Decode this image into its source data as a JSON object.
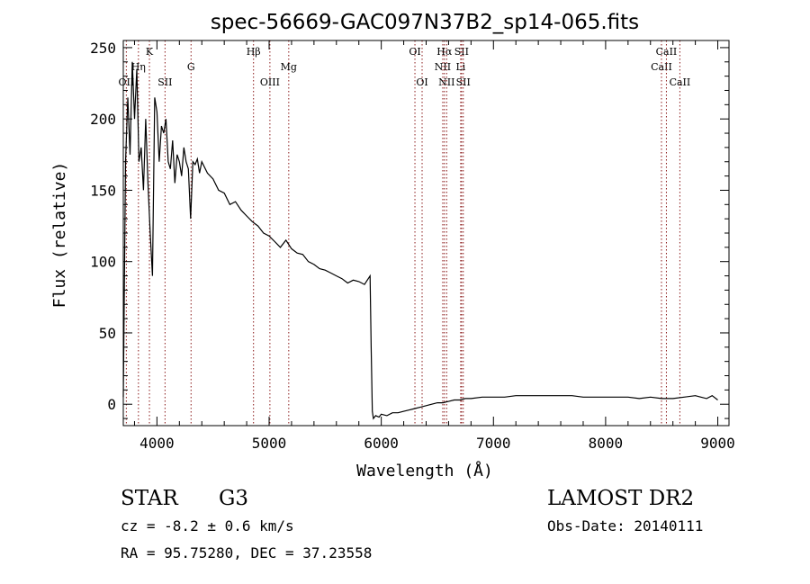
{
  "chart_data": {
    "type": "line",
    "title": "spec-56669-GAC097N37B2_sp14-065.fits",
    "xlabel": "Wavelength (Å)",
    "ylabel": "Flux (relative)",
    "xlim": [
      3700,
      9100
    ],
    "ylim": [
      -15,
      255
    ],
    "xticks": [
      4000,
      5000,
      6000,
      7000,
      8000,
      9000
    ],
    "yticks": [
      0,
      50,
      100,
      150,
      200,
      250
    ],
    "grid": false,
    "line_color": "#000000",
    "marker_color": "#8b1a1a",
    "series": [
      {
        "x": [
          3700,
          3720,
          3740,
          3760,
          3780,
          3800,
          3820,
          3840,
          3860,
          3880,
          3900,
          3920,
          3940,
          3960,
          3980,
          4000,
          4020,
          4040,
          4060,
          4080,
          4100,
          4120,
          4140,
          4160,
          4180,
          4200,
          4220,
          4240,
          4260,
          4280,
          4300,
          4320,
          4340,
          4360,
          4380,
          4400,
          4450,
          4500,
          4550,
          4600,
          4650,
          4700,
          4750,
          4800,
          4850,
          4900,
          4950,
          5000,
          5050,
          5100,
          5150,
          5200,
          5250,
          5300,
          5350,
          5400,
          5450,
          5500,
          5550,
          5600,
          5650,
          5700,
          5750,
          5800,
          5850,
          5900,
          5910,
          5920,
          5930,
          5950,
          5980,
          6000,
          6050,
          6100,
          6150,
          6200,
          6250,
          6300,
          6350,
          6400,
          6450,
          6500,
          6550,
          6600,
          6650,
          6700,
          6750,
          6800,
          6900,
          7000,
          7100,
          7200,
          7300,
          7400,
          7500,
          7600,
          7700,
          7800,
          7900,
          8000,
          8100,
          8200,
          8300,
          8400,
          8500,
          8600,
          8700,
          8800,
          8850,
          8900,
          8950,
          9000
        ],
        "y": [
          5,
          170,
          215,
          175,
          240,
          200,
          235,
          170,
          180,
          150,
          200,
          155,
          120,
          90,
          215,
          205,
          170,
          195,
          190,
          200,
          170,
          165,
          185,
          155,
          175,
          170,
          160,
          180,
          170,
          165,
          130,
          170,
          168,
          172,
          162,
          170,
          162,
          158,
          150,
          148,
          140,
          142,
          136,
          132,
          128,
          125,
          120,
          118,
          114,
          110,
          115,
          109,
          106,
          105,
          100,
          98,
          95,
          94,
          92,
          90,
          88,
          85,
          87,
          86,
          84,
          90,
          40,
          -5,
          -10,
          -8,
          -9,
          -7,
          -8,
          -6,
          -6,
          -5,
          -4,
          -3,
          -2,
          -1,
          0,
          1,
          1,
          2,
          3,
          3,
          4,
          4,
          5,
          5,
          5,
          6,
          6,
          6,
          6,
          6,
          6,
          5,
          5,
          5,
          5,
          5,
          4,
          5,
          4,
          4,
          5,
          6,
          5,
          4,
          6,
          3
        ]
      }
    ],
    "line_markers": [
      {
        "label": "OII",
        "x": 3727,
        "row": 3
      },
      {
        "label": "Hη",
        "x": 3835,
        "row": 2
      },
      {
        "label": "K",
        "x": 3933,
        "row": 1
      },
      {
        "label": "SII",
        "x": 4072,
        "row": 3
      },
      {
        "label": "G",
        "x": 4304,
        "row": 2
      },
      {
        "label": "Hβ",
        "x": 4861,
        "row": 1
      },
      {
        "label": "OIII",
        "x": 5007,
        "row": 3
      },
      {
        "label": "Mg",
        "x": 5175,
        "row": 2
      },
      {
        "label": "OI",
        "x": 6300,
        "row": 1
      },
      {
        "label": "OI",
        "x": 6364,
        "row": 3
      },
      {
        "label": "NII",
        "x": 6548,
        "row": 2
      },
      {
        "label": "Hα",
        "x": 6563,
        "row": 1
      },
      {
        "label": "NII",
        "x": 6583,
        "row": 3
      },
      {
        "label": "SII",
        "x": 6716,
        "row": 1
      },
      {
        "label": "Li",
        "x": 6708,
        "row": 2
      },
      {
        "label": "SII",
        "x": 6731,
        "row": 3
      },
      {
        "label": "CaII",
        "x": 8498,
        "row": 2
      },
      {
        "label": "CaII",
        "x": 8542,
        "row": 1
      },
      {
        "label": "CaII",
        "x": 8662,
        "row": 3
      }
    ]
  },
  "info": {
    "object_class": "STAR",
    "subclass": "G3",
    "survey": "LAMOST DR2",
    "cz": "cz = -8.2 ± 0.6 km/s",
    "obs_date": "Obs-Date: 20140111",
    "radec": "RA =  95.75280, DEC =  37.23558"
  }
}
